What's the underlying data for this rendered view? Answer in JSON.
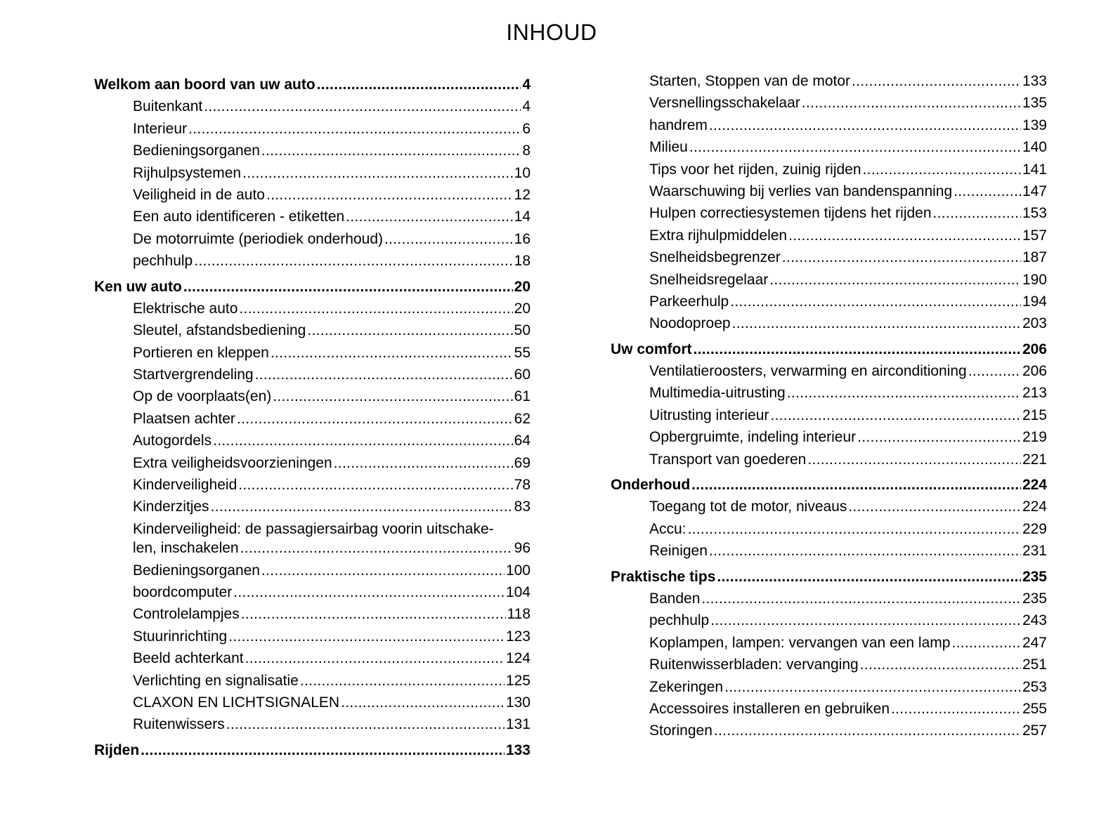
{
  "title": "INHOUD",
  "columns": [
    {
      "entries": [
        {
          "level": "heading",
          "label": "Welkom aan boord van uw auto",
          "page": "4"
        },
        {
          "level": "sub",
          "label": "Buitenkant",
          "page": "4"
        },
        {
          "level": "sub",
          "label": "Interieur",
          "page": "6"
        },
        {
          "level": "sub",
          "label": "Bedieningsorganen",
          "page": "8"
        },
        {
          "level": "sub",
          "label": "Rijhulpsystemen",
          "page": "10"
        },
        {
          "level": "sub",
          "label": "Veiligheid in de auto",
          "page": "12"
        },
        {
          "level": "sub",
          "label": "Een auto identificeren - etiketten",
          "page": "14"
        },
        {
          "level": "sub",
          "label": "De motorruimte (periodiek onderhoud)",
          "page": "16"
        },
        {
          "level": "sub",
          "label": "pechhulp",
          "page": "18"
        },
        {
          "level": "heading",
          "label": "Ken uw auto",
          "page": "20"
        },
        {
          "level": "sub",
          "label": "Elektrische auto",
          "page": "20"
        },
        {
          "level": "sub",
          "label": "Sleutel, afstandsbediening",
          "page": "50"
        },
        {
          "level": "sub",
          "label": "Portieren en kleppen",
          "page": "55"
        },
        {
          "level": "sub",
          "label": "Startvergrendeling",
          "page": "60"
        },
        {
          "level": "sub",
          "label": "Op de voorplaats(en)",
          "page": "61"
        },
        {
          "level": "sub",
          "label": "Plaatsen achter",
          "page": "62"
        },
        {
          "level": "sub",
          "label": "Autogordels",
          "page": "64"
        },
        {
          "level": "sub",
          "label": "Extra veiligheidsvoorzieningen",
          "page": "69"
        },
        {
          "level": "sub",
          "label": "Kinderveiligheid",
          "page": "78"
        },
        {
          "level": "sub",
          "label": "Kinderzitjes",
          "page": "83"
        },
        {
          "level": "sub",
          "label_line1": "Kinderveiligheid: de passagiersairbag voorin uitschake-",
          "label": "len, inschakelen",
          "page": "96"
        },
        {
          "level": "sub",
          "label": "Bedieningsorganen",
          "page": "100"
        },
        {
          "level": "sub",
          "label": "boordcomputer",
          "page": "104"
        },
        {
          "level": "sub",
          "label": "Controlelampjes",
          "page": "118"
        },
        {
          "level": "sub",
          "label": "Stuurinrichting",
          "page": "123"
        },
        {
          "level": "sub",
          "label": "Beeld achterkant",
          "page": "124"
        },
        {
          "level": "sub",
          "label": "Verlichting en signalisatie",
          "page": "125"
        },
        {
          "level": "sub",
          "label": "CLAXON EN LICHTSIGNALEN",
          "page": "130"
        },
        {
          "level": "sub",
          "label": "Ruitenwissers",
          "page": "131"
        },
        {
          "level": "heading",
          "label": "Rijden",
          "page": "133"
        }
      ]
    },
    {
      "entries": [
        {
          "level": "sub",
          "label": "Starten, Stoppen van de motor",
          "page": "133"
        },
        {
          "level": "sub",
          "label": "Versnellingsschakelaar",
          "page": "135"
        },
        {
          "level": "sub",
          "label": "handrem",
          "page": "139"
        },
        {
          "level": "sub",
          "label": "Milieu",
          "page": "140"
        },
        {
          "level": "sub",
          "label": "Tips voor het rijden, zuinig rijden",
          "page": "141"
        },
        {
          "level": "sub",
          "label": "Waarschuwing bij verlies van bandenspanning",
          "page": "147"
        },
        {
          "level": "sub",
          "label": "Hulpen correctiesystemen tijdens het rijden",
          "page": "153"
        },
        {
          "level": "sub",
          "label": "Extra rijhulpmiddelen",
          "page": "157"
        },
        {
          "level": "sub",
          "label": "Snelheidsbegrenzer",
          "page": "187"
        },
        {
          "level": "sub",
          "label": "Snelheidsregelaar",
          "page": "190"
        },
        {
          "level": "sub",
          "label": "Parkeerhulp",
          "page": "194"
        },
        {
          "level": "sub",
          "label": "Noodoproep",
          "page": "203"
        },
        {
          "level": "heading",
          "label": "Uw comfort",
          "page": "206"
        },
        {
          "level": "sub",
          "label": "Ventilatieroosters, verwarming en airconditioning",
          "page": "206"
        },
        {
          "level": "sub",
          "label": "Multimedia-uitrusting",
          "page": "213"
        },
        {
          "level": "sub",
          "label": "Uitrusting interieur",
          "page": "215"
        },
        {
          "level": "sub",
          "label": "Opbergruimte, indeling interieur",
          "page": "219"
        },
        {
          "level": "sub",
          "label": "Transport van goederen",
          "page": "221"
        },
        {
          "level": "heading",
          "label": "Onderhoud",
          "page": "224"
        },
        {
          "level": "sub",
          "label": "Toegang tot de motor, niveaus",
          "page": "224"
        },
        {
          "level": "sub",
          "label": "Accu:",
          "page": "229"
        },
        {
          "level": "sub",
          "label": "Reinigen",
          "page": "231"
        },
        {
          "level": "heading",
          "label": "Praktische tips",
          "page": "235"
        },
        {
          "level": "sub",
          "label": "Banden",
          "page": "235"
        },
        {
          "level": "sub",
          "label": "pechhulp",
          "page": "243"
        },
        {
          "level": "sub",
          "label": "Koplampen, lampen: vervangen van een lamp",
          "page": "247"
        },
        {
          "level": "sub",
          "label": "Ruitenwisserbladen: vervanging",
          "page": "251"
        },
        {
          "level": "sub",
          "label": "Zekeringen",
          "page": "253"
        },
        {
          "level": "sub",
          "label": "Accessoires installeren en gebruiken",
          "page": "255"
        },
        {
          "level": "sub",
          "label": "Storingen",
          "page": "257"
        }
      ]
    }
  ]
}
